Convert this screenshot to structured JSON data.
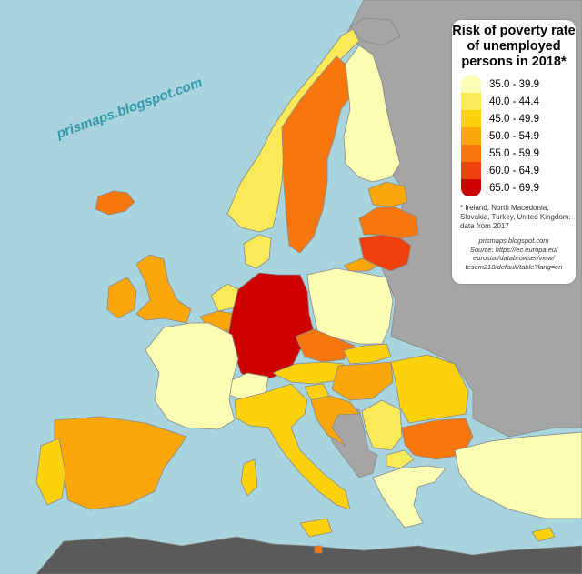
{
  "title_lines": [
    "Risk of poverty rate",
    "of unemployed",
    "persons in 2018*"
  ],
  "watermark": "prismaps.blogspot.com",
  "legend": [
    {
      "label": "35.0 - 39.9",
      "color": "#fdfdb4"
    },
    {
      "label": "40.0 - 44.4",
      "color": "#fbea57"
    },
    {
      "label": "45.0 - 49.9",
      "color": "#fdd10b"
    },
    {
      "label": "50.0 - 54.9",
      "color": "#fba70a"
    },
    {
      "label": "55.0 - 59.9",
      "color": "#f7760e"
    },
    {
      "label": "60.0 - 64.9",
      "color": "#f0410d"
    },
    {
      "label": "65.0 - 69.9",
      "color": "#cc0000"
    }
  ],
  "footnote_lines": [
    "* Ireland, North Macedonia,",
    "Slovakia, Turkey, United Kingdom:",
    "data from 2017"
  ],
  "source_lines": [
    "prismaps.blogspot.com",
    "Source: https://ec.europa.eu/",
    "eurostat/databrowser/view/",
    "tesem210/default/table?lang=en"
  ],
  "colors": {
    "sea": "#a8d4de",
    "non_eu": "#a5a5a5",
    "africa": "#5a5a5a",
    "border": "#888888"
  },
  "countries": [
    {
      "name": "Germany",
      "bin": 6
    },
    {
      "name": "Lithuania",
      "bin": 5
    },
    {
      "name": "Sweden",
      "bin": 4
    },
    {
      "name": "Latvia",
      "bin": 4
    },
    {
      "name": "Bulgaria",
      "bin": 4
    },
    {
      "name": "Czechia",
      "bin": 4
    },
    {
      "name": "Estonia",
      "bin": 3
    },
    {
      "name": "United Kingdom",
      "bin": 3
    },
    {
      "name": "Spain",
      "bin": 3
    },
    {
      "name": "Croatia",
      "bin": 3
    },
    {
      "name": "Belgium",
      "bin": 3
    },
    {
      "name": "Hungary",
      "bin": 3
    },
    {
      "name": "Ireland",
      "bin": 3
    },
    {
      "name": "Malta",
      "bin": 4
    },
    {
      "name": "Romania",
      "bin": 2
    },
    {
      "name": "Italy",
      "bin": 2
    },
    {
      "name": "Austria",
      "bin": 2
    },
    {
      "name": "Slovakia",
      "bin": 2
    },
    {
      "name": "Slovenia",
      "bin": 2
    },
    {
      "name": "Luxembourg",
      "bin": 2
    },
    {
      "name": "Portugal",
      "bin": 2
    },
    {
      "name": "Kaliningrad",
      "bin": 3
    },
    {
      "name": "Norway",
      "bin": 1
    },
    {
      "name": "Denmark",
      "bin": 1
    },
    {
      "name": "North Macedonia",
      "bin": 1
    },
    {
      "name": "Netherlands",
      "bin": 1
    },
    {
      "name": "Serbia",
      "bin": 1
    },
    {
      "name": "Finland",
      "bin": 0
    },
    {
      "name": "France",
      "bin": 0
    },
    {
      "name": "Poland",
      "bin": 0
    },
    {
      "name": "Switzerland",
      "bin": 0
    },
    {
      "name": "Greece",
      "bin": 0
    },
    {
      "name": "Turkey",
      "bin": 0
    },
    {
      "name": "Iceland",
      "bin": 4
    },
    {
      "name": "Cyprus",
      "bin": 2
    }
  ]
}
